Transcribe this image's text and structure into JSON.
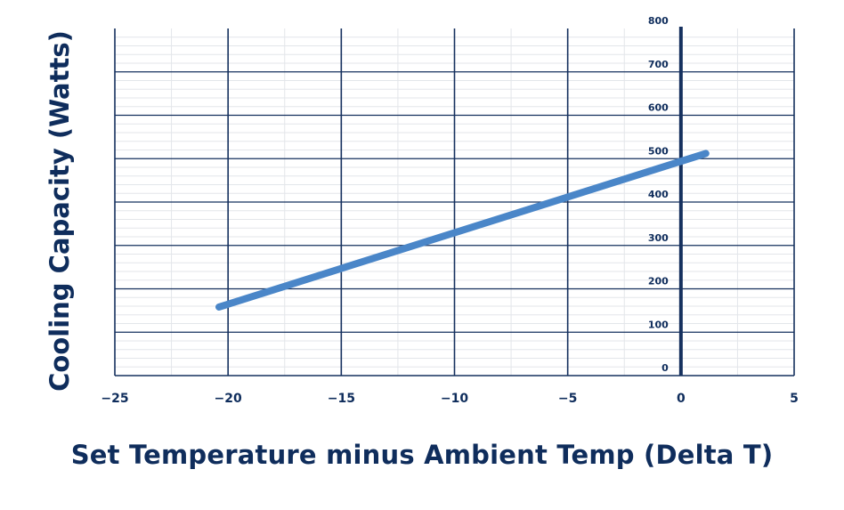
{
  "chart_data": {
    "type": "line",
    "xlabel": "Set Temperature minus Ambient Temp (Delta T)",
    "ylabel": "Cooling Capacity (Watts)",
    "xlim": [
      -25,
      5
    ],
    "ylim": [
      0,
      800
    ],
    "x_ticks": [
      "−25",
      "−20",
      "−15",
      "−10",
      "−5",
      "0",
      "5"
    ],
    "y_ticks": [
      "0",
      "100",
      "200",
      "300",
      "400",
      "500",
      "600",
      "700",
      "800"
    ],
    "grid": true,
    "series": [
      {
        "x": [
          -20.4,
          1.1
        ],
        "y": [
          158,
          512
        ],
        "color": "#4a86c8"
      }
    ],
    "colors": {
      "major_grid": "#15305e",
      "minor_grid": "#e3e6ea",
      "axis_text": "#0f2d5c"
    }
  }
}
